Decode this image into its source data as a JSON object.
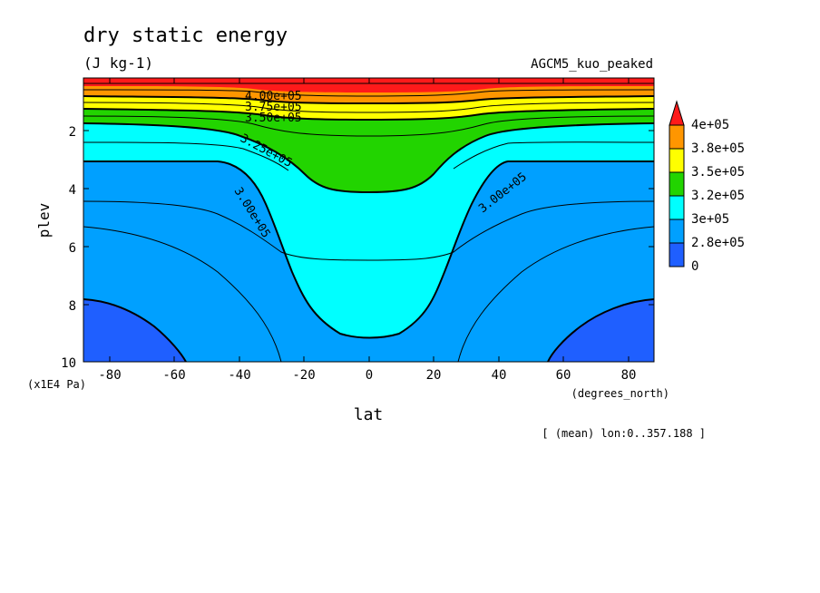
{
  "chart_data": {
    "type": "heatmap",
    "title": "dry static energy",
    "units": "(J kg-1)",
    "model": "AGCM5_kuo_peaked",
    "xlabel": "lat",
    "xunits": "(degrees_north)",
    "ylabel": "plev",
    "yunits": "(x1E4 Pa)",
    "xlim": [
      -87.5,
      87.5
    ],
    "ylim": [
      10,
      0.2
    ],
    "xticks": [
      "-80",
      "-60",
      "-40",
      "-20",
      "0",
      "20",
      "40",
      "60",
      "80"
    ],
    "yticks": [
      "2",
      "4",
      "6",
      "8",
      "10"
    ],
    "footnote": "[ (mean) lon:0..357.188 ]",
    "colorbar": {
      "labels": [
        "0",
        "2.8e+05",
        "3e+05",
        "3.2e+05",
        "3.5e+05",
        "3.8e+05",
        "4e+05"
      ],
      "colors": [
        "#1f5fff",
        "#00a0ff",
        "#00ffff",
        "#22d400",
        "#ffff00",
        "#ff9600",
        "#ff1a1a"
      ]
    },
    "contour_labels": [
      "4.00e+05",
      "3.75e+05",
      "3.50e+05",
      "3.25e+05",
      "3.00e+05",
      "3.00e+05"
    ],
    "fill_levels": {
      "deep_blue_polar": "< 2.8e+05",
      "blue_lower_midlat": "2.8e+05 - 3e+05",
      "cyan_tropics": "3e+05 - 3.2e+05",
      "green_upper_tropics": "3.2e+05 - 3.5e+05",
      "yellow_orange_red_top": "> 3.5e+05"
    }
  }
}
